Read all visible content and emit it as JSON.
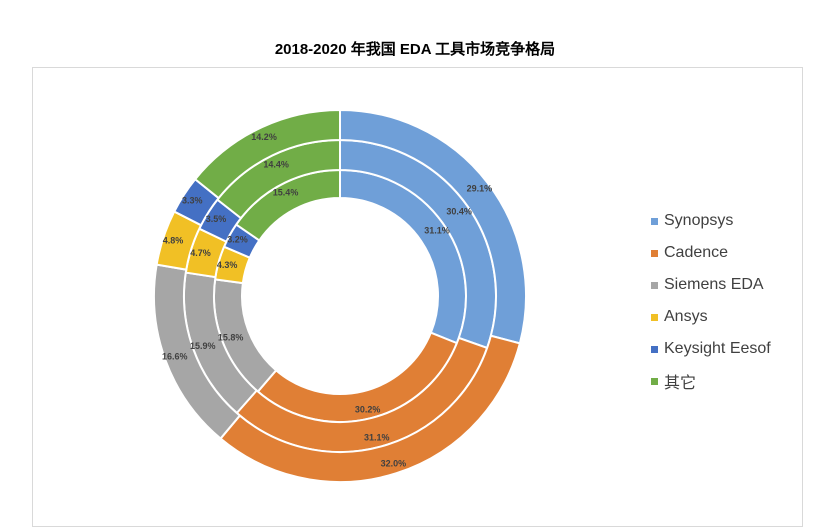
{
  "chart_data": {
    "type": "pie",
    "title": "2018-2020 年我国 EDA 工具市场竞争格局",
    "categories": [
      "Synopsys",
      "Cadence",
      "Siemens EDA",
      "Ansys",
      "Keysight Eesof",
      "其它"
    ],
    "colors": [
      "#6f9fd8",
      "#e07f35",
      "#a6a6a6",
      "#f1c025",
      "#4470c4",
      "#71ad47"
    ],
    "series": [
      {
        "values": [
          31.1,
          30.2,
          15.8,
          4.3,
          3.2,
          15.4
        ],
        "labels": [
          "31.1%",
          "30.2%",
          "15.8%",
          "4.3%",
          "3.2%",
          "15.4%"
        ]
      },
      {
        "values": [
          30.4,
          31.1,
          15.9,
          4.7,
          3.5,
          14.4
        ],
        "labels": [
          "30.4%",
          "31.1%",
          "15.9%",
          "4.7%",
          "3.5%",
          "14.4%"
        ]
      },
      {
        "values": [
          29.1,
          32.0,
          16.6,
          4.8,
          3.3,
          14.2
        ],
        "labels": [
          "29.1%",
          "32.0%",
          "16.6%",
          "4.8%",
          "3.3%",
          "14.2%"
        ]
      }
    ],
    "legend_position": "right"
  }
}
